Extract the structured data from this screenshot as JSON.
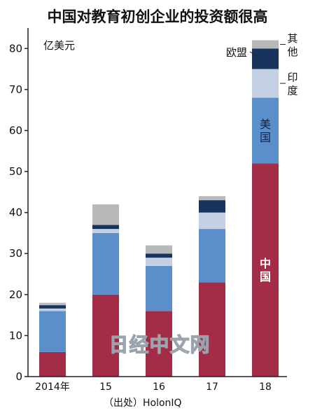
{
  "chart_data": {
    "type": "bar",
    "stacked": true,
    "title": "中国对教育初创企业的投资额很高",
    "unit_label": "亿美元",
    "categories": [
      "2014年",
      "15",
      "16",
      "17",
      "18"
    ],
    "ylim": [
      0,
      85
    ],
    "yticks": [
      0,
      10,
      20,
      30,
      40,
      50,
      60,
      70,
      80
    ],
    "grid": false,
    "series": [
      {
        "name": "中国",
        "color": "#a32c47",
        "values": [
          6,
          20,
          16,
          23,
          52
        ]
      },
      {
        "name": "美国",
        "color": "#5b8fcc",
        "values": [
          10,
          15,
          11,
          13,
          16
        ]
      },
      {
        "name": "印度",
        "color": "#c3cfe3",
        "values": [
          0.6,
          1,
          2,
          4,
          7
        ]
      },
      {
        "name": "欧盟",
        "color": "#18335c",
        "values": [
          0.8,
          1,
          1,
          3,
          5
        ]
      },
      {
        "name": "其他",
        "color": "#b7b8b9",
        "values": [
          0.6,
          5,
          2,
          1,
          2
        ]
      }
    ],
    "legend": [
      {
        "series": "其他",
        "lines": [
          "其",
          "他"
        ]
      },
      {
        "series": "欧盟",
        "lines": [
          "欧盟"
        ]
      },
      {
        "series": "印度",
        "lines": [
          "印",
          "度"
        ]
      },
      {
        "series": "美国",
        "lines": [
          "美",
          "国"
        ]
      },
      {
        "series": "中国",
        "lines": [
          "中",
          "国"
        ]
      }
    ],
    "source": "（出处）HolonIQ",
    "watermark": "日经中文网"
  }
}
